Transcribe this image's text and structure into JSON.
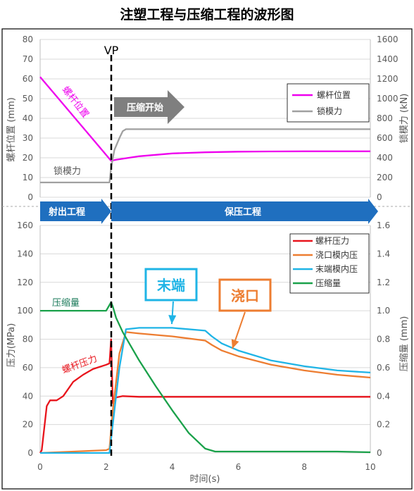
{
  "figure_title": "注塑工程与压缩工程的波形图",
  "vp_label": "VP",
  "phase_arrows": [
    {
      "label": "射出工程"
    },
    {
      "label": "保压工程"
    },
    {
      "label": "压缩开始"
    }
  ],
  "colors": {
    "screw_position": "#ee00ee",
    "clamp_force": "#a0a0a0",
    "screw_pressure": "#e8141c",
    "gate_pressure": "#ed7d31",
    "end_pressure": "#1fb4e6",
    "compression": "#1aa14a",
    "phase_arrow": "#1f6fbf",
    "compress_arrow": "#7f7f7f"
  },
  "chart_data": [
    {
      "type": "line",
      "panel": "top",
      "xlim": [
        0,
        10
      ],
      "ylabel": "螺杆位置 (mm)",
      "ylim": [
        0,
        80
      ],
      "yticks": [
        0,
        10,
        20,
        30,
        40,
        50,
        60,
        70,
        80
      ],
      "y2label": "锁模力 (kN)",
      "y2lim": [
        0,
        1600
      ],
      "y2ticks": [
        0,
        200,
        400,
        600,
        800,
        1000,
        1200,
        1400,
        1600
      ],
      "legend_position": "top-right",
      "series": [
        {
          "name": "螺杆位置",
          "axis": "left",
          "color": "#ee00ee",
          "x": [
            0,
            2.15,
            2.3,
            3,
            4,
            5,
            6,
            7,
            8,
            9,
            10
          ],
          "y": [
            61,
            18.5,
            19,
            20.8,
            22.2,
            22.8,
            23.1,
            23.2,
            23.3,
            23.3,
            23.3
          ]
        },
        {
          "name": "锁模力",
          "axis": "right",
          "color": "#a0a0a0",
          "x": [
            0,
            2.1,
            2.15,
            2.25,
            2.4,
            2.5,
            2.6,
            3,
            4,
            5,
            6,
            7,
            8,
            9,
            10
          ],
          "y": [
            150,
            150,
            300,
            480,
            600,
            670,
            690,
            690,
            690,
            690,
            690,
            690,
            690,
            690,
            690
          ]
        }
      ],
      "annotations": [
        {
          "text": "螺杆位置",
          "series": "螺杆位置"
        },
        {
          "text": "锁模力",
          "series": "锁模力"
        }
      ]
    },
    {
      "type": "line",
      "panel": "bottom",
      "xlabel": "时间(s)",
      "xlim": [
        0,
        10
      ],
      "xticks": [
        0,
        2,
        4,
        6,
        8,
        10
      ],
      "ylabel": "压力(MPa)",
      "ylim": [
        0,
        160
      ],
      "yticks": [
        0,
        20,
        40,
        60,
        80,
        100,
        120,
        140,
        160
      ],
      "y2label": "压缩量 (mm)",
      "y2lim": [
        0,
        1.6
      ],
      "y2ticks": [
        0,
        0.2,
        0.4,
        0.6,
        0.8,
        1.0,
        1.2,
        1.4,
        1.6
      ],
      "legend_position": "top-right",
      "series": [
        {
          "name": "螺杆压力",
          "axis": "left",
          "color": "#e8141c",
          "x": [
            0,
            0.05,
            0.2,
            0.3,
            0.5,
            0.7,
            1.0,
            1.3,
            1.6,
            2.0,
            2.1,
            2.15,
            2.2,
            2.3,
            2.5,
            3,
            4,
            5,
            6,
            7,
            8,
            9,
            10
          ],
          "y": [
            0,
            2,
            33,
            37,
            37,
            40,
            50,
            55,
            59,
            62,
            63,
            80,
            35,
            39,
            40,
            39.5,
            39.5,
            39.5,
            39.5,
            39.5,
            39.5,
            39.5,
            39.5
          ]
        },
        {
          "name": "浇口模内压",
          "axis": "left",
          "color": "#ed7d31",
          "x": [
            0,
            2.0,
            2.1,
            2.2,
            2.4,
            2.6,
            3,
            4,
            5,
            5.2,
            5.5,
            6,
            7,
            8,
            9,
            10
          ],
          "y": [
            0,
            2,
            3,
            30,
            70,
            85,
            84,
            82,
            79,
            76,
            72,
            68,
            62,
            58,
            55,
            53
          ]
        },
        {
          "name": "末端模内压",
          "axis": "left",
          "color": "#1fb4e6",
          "x": [
            0,
            2.0,
            2.1,
            2.2,
            2.4,
            2.6,
            3,
            4,
            5,
            5.2,
            5.5,
            6,
            7,
            8,
            9,
            10
          ],
          "y": [
            0,
            0,
            0,
            20,
            60,
            87,
            88,
            88,
            86,
            82,
            77,
            72,
            65,
            61,
            58,
            56.5
          ]
        },
        {
          "name": "压缩量",
          "axis": "right",
          "color": "#1aa14a",
          "x": [
            0,
            2.0,
            2.1,
            2.15,
            2.2,
            2.3,
            2.5,
            3,
            3.5,
            4,
            4.5,
            5,
            5.3,
            6,
            7,
            8,
            9,
            10
          ],
          "y": [
            1.0,
            1.0,
            1.04,
            1.06,
            1.03,
            0.95,
            0.85,
            0.65,
            0.47,
            0.3,
            0.14,
            0.03,
            0.01,
            0.01,
            0.01,
            0.01,
            0.01,
            0.005
          ]
        }
      ],
      "annotations": [
        {
          "text": "压缩量",
          "series": "压缩量"
        },
        {
          "text": "螺杆压力",
          "series": "螺杆压力"
        },
        {
          "text": "末端",
          "series": "末端模内压",
          "boxed": true
        },
        {
          "text": "浇口",
          "series": "浇口模内压",
          "boxed": true
        }
      ]
    }
  ]
}
